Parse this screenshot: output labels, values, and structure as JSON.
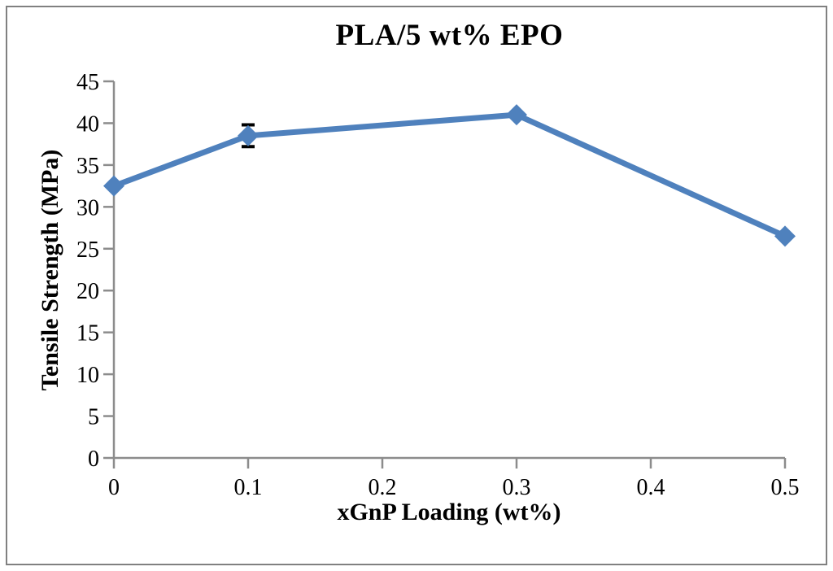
{
  "chart_data": {
    "type": "line",
    "title": "PLA/5 wt% EPO",
    "xlabel": "xGnP Loading (wt%)",
    "ylabel": "Tensile Strength (MPa)",
    "series": [
      {
        "name": "PLA/5 wt% EPO",
        "x": [
          0,
          0.1,
          0.3,
          0.5
        ],
        "y": [
          32.5,
          38.5,
          41,
          26.5
        ],
        "y_err": [
          0,
          1.3,
          0,
          0
        ],
        "color": "#4F81BD",
        "marker": "diamond"
      }
    ],
    "xlim": [
      0,
      0.5
    ],
    "ylim": [
      0,
      45
    ],
    "xticks": [
      0,
      0.1,
      0.2,
      0.3,
      0.4,
      0.5
    ],
    "yticks": [
      0,
      5,
      10,
      15,
      20,
      25,
      30,
      35,
      40,
      45
    ],
    "grid": false,
    "legend_position": "none",
    "colors": {
      "axis": "#8C8C8C",
      "tick_text": "#000000",
      "error_bar": "#000000",
      "figure_border": "#808080"
    }
  }
}
